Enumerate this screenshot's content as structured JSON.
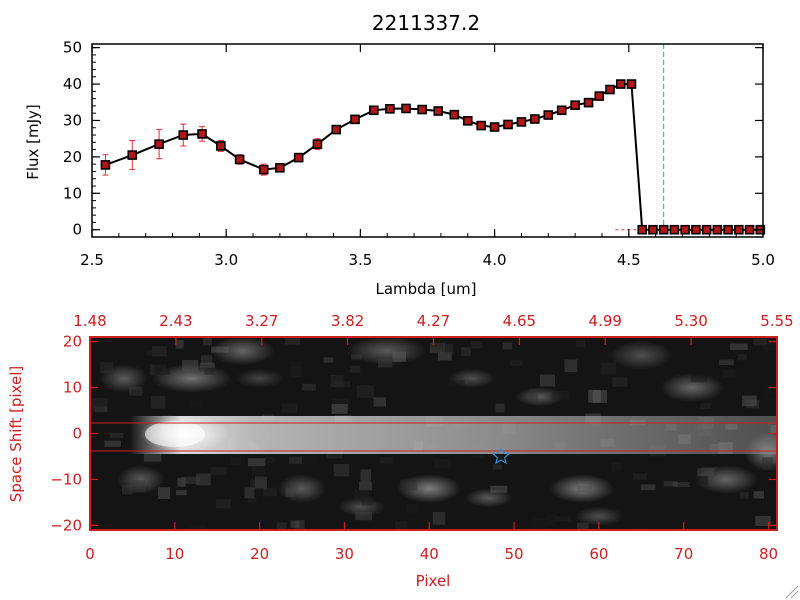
{
  "chart_data": [
    {
      "type": "line",
      "title": "2211337.2",
      "xlabel": "Lambda [um]",
      "ylabel": "Flux [mJy]",
      "xlim": [
        2.5,
        5.0
      ],
      "ylim": [
        -2,
        51
      ],
      "x_ticks": [
        "2.5",
        "3.0",
        "3.5",
        "4.0",
        "4.5",
        "5.0"
      ],
      "y_ticks": [
        "0",
        "10",
        "20",
        "30",
        "40",
        "50"
      ],
      "colors": {
        "line": "#000000",
        "marker": "#b01818",
        "errorbar": "#e03030",
        "cutoff_line": "#3a8fd0"
      },
      "cutoff_wavelength": 4.63,
      "series": [
        {
          "x": [
            2.55,
            2.65,
            2.75,
            2.84,
            2.91,
            2.98,
            3.05,
            3.14,
            3.2,
            3.27,
            3.34,
            3.41,
            3.48,
            3.55,
            3.61,
            3.67,
            3.73,
            3.79,
            3.85,
            3.9,
            3.95,
            4.0,
            4.05,
            4.1,
            4.15,
            4.2,
            4.25,
            4.3,
            4.35,
            4.39,
            4.43,
            4.47,
            4.51,
            4.55,
            4.59,
            4.63,
            4.67,
            4.71,
            4.75,
            4.79,
            4.83,
            4.87,
            4.91,
            4.95,
            4.99
          ],
          "y": [
            17.8,
            20.5,
            23.5,
            26.0,
            26.3,
            23.0,
            19.3,
            16.5,
            17.0,
            19.8,
            23.5,
            27.5,
            30.3,
            32.8,
            33.2,
            33.3,
            33.0,
            32.6,
            31.6,
            29.9,
            28.6,
            28.2,
            28.9,
            29.6,
            30.4,
            31.5,
            32.8,
            34.2,
            34.9,
            36.7,
            38.5,
            40.0,
            40.0,
            0,
            0,
            0,
            0,
            0,
            0,
            0,
            0,
            0,
            0,
            0,
            0
          ],
          "yerr": [
            2.8,
            4.0,
            4.0,
            3.0,
            2.0,
            1.5,
            1.3,
            1.5,
            1.0,
            1.0,
            1.5,
            1.0,
            0.7,
            0.6,
            0.5,
            0.5,
            0.5,
            0.5,
            0.6,
            0.7,
            0.6,
            0.6,
            0.7,
            0.6,
            0.6,
            0.7,
            0.8,
            0.8,
            0.7,
            0.9,
            1.0,
            1.0,
            1.0,
            0,
            0,
            0,
            0,
            0,
            0,
            0,
            0,
            0,
            0,
            0,
            0
          ]
        }
      ]
    },
    {
      "type": "heatmap",
      "xlabel": "Pixel",
      "ylabel": "Space Shift [pixel]",
      "xlim": [
        0,
        81
      ],
      "ylim": [
        -21,
        21
      ],
      "x_ticks": [
        "0",
        "10",
        "20",
        "30",
        "40",
        "50",
        "60",
        "70",
        "80"
      ],
      "y_ticks": [
        "20",
        "10",
        "0",
        "−10",
        "−20"
      ],
      "top_axis_ticks": [
        "1.48",
        "2.43",
        "3.27",
        "3.82",
        "4.27",
        "4.65",
        "4.99",
        "5.30",
        "5.55"
      ],
      "colormap": "grayscale",
      "colors": {
        "axis": "#cc1f1f",
        "marker": "#3a8fd0"
      },
      "band_lines_y": [
        3,
        -3
      ],
      "marker": {
        "shape": "star",
        "x": 48.5,
        "y": -3.5
      },
      "trace": {
        "x_start": 7,
        "x_end": 81,
        "y_center": 0,
        "peak_x": 10
      }
    }
  ]
}
